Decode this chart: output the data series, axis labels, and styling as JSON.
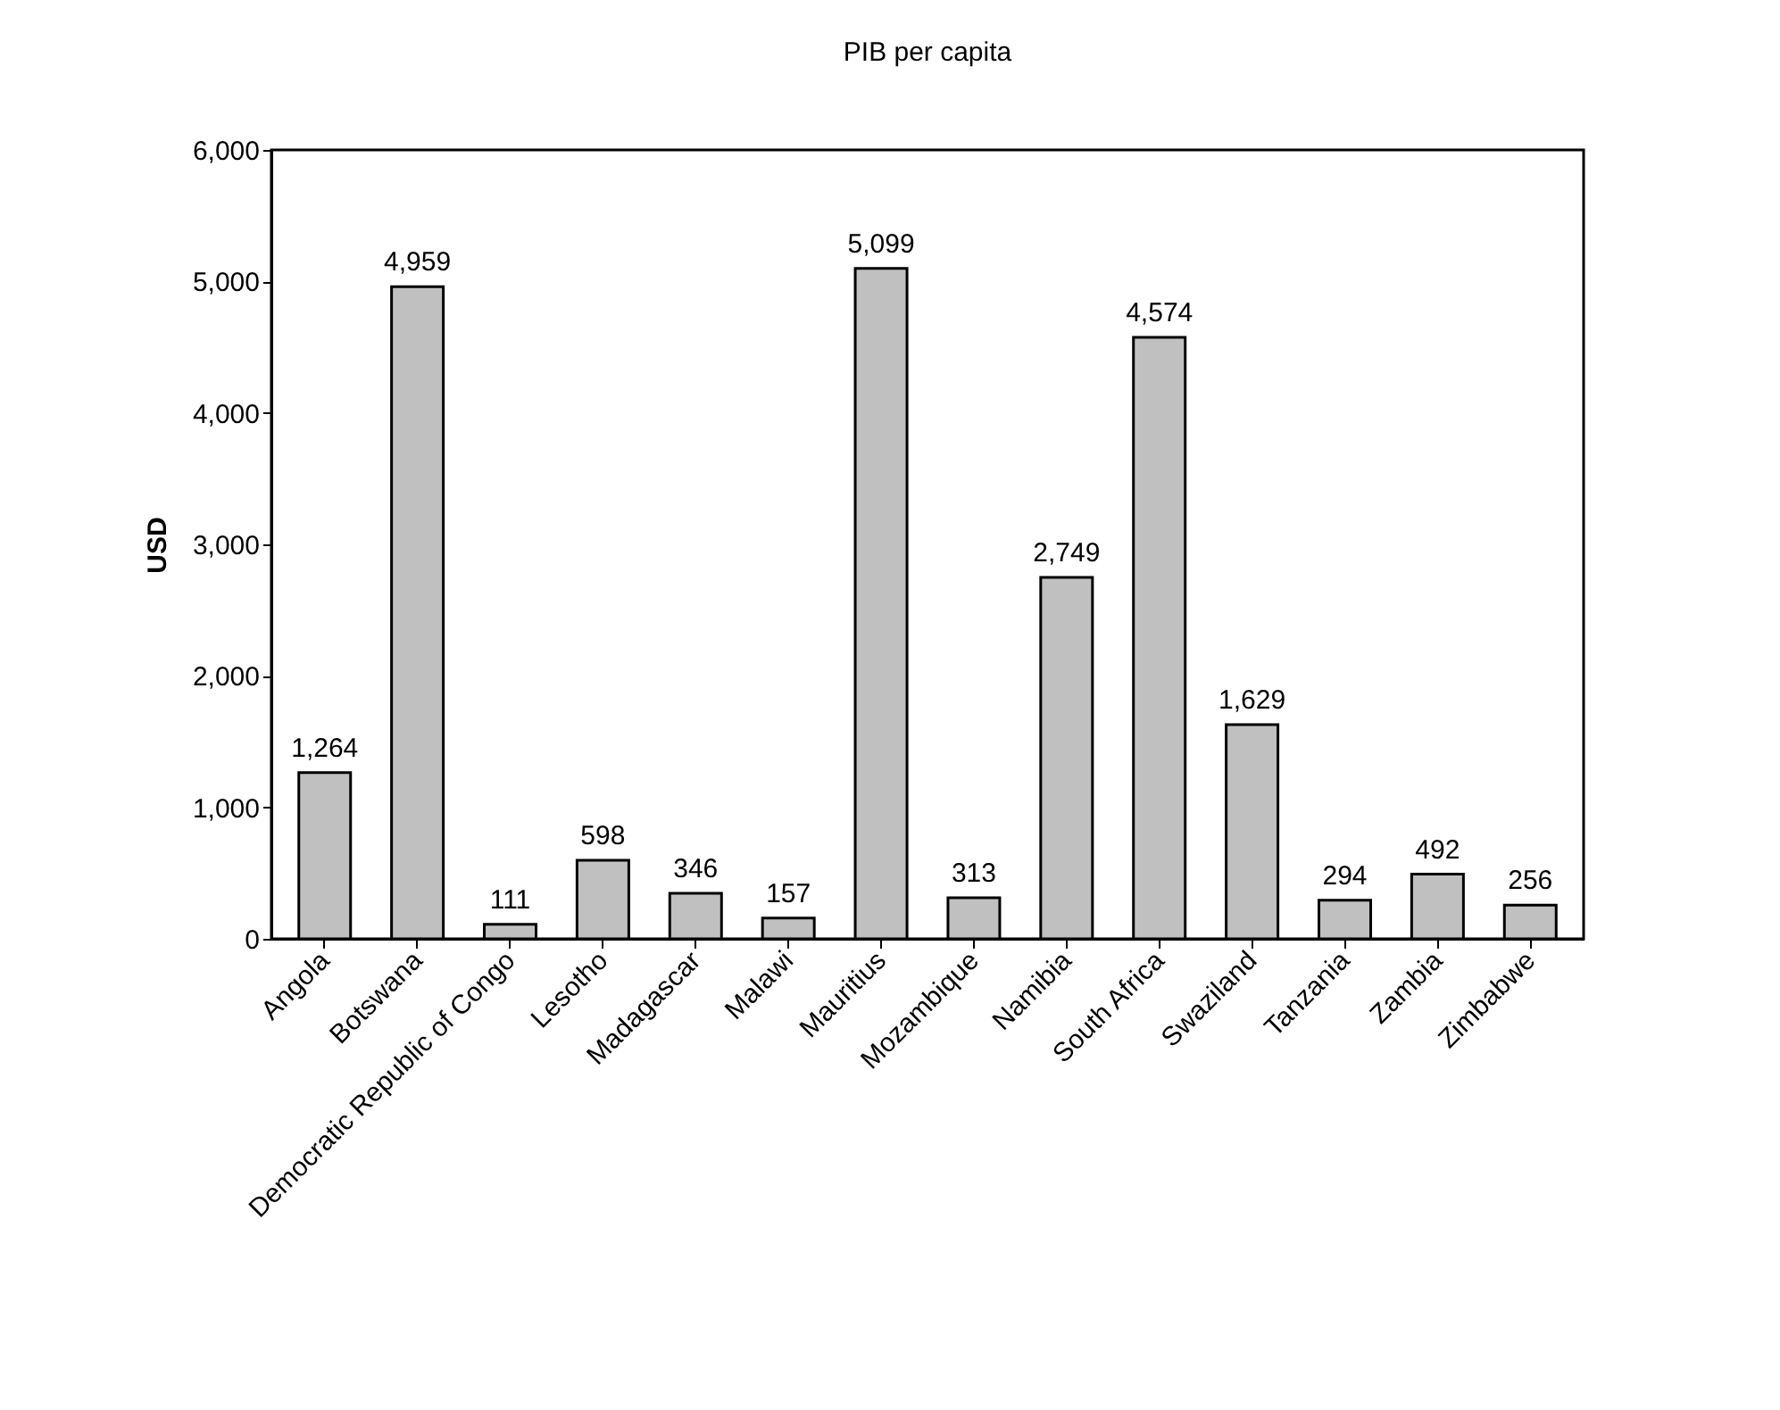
{
  "chart_data": {
    "type": "bar",
    "title": "PIB per capita",
    "ylabel": "USD",
    "categories": [
      "Angola",
      "Botswana",
      "Democratic Republic of Congo",
      "Lesotho",
      "Madagascar",
      "Malawi",
      "Mauritius",
      "Mozambique",
      "Namibia",
      "South Africa",
      "Swaziland",
      "Tanzania",
      "Zambia",
      "Zimbabwe"
    ],
    "values": [
      1264,
      4959,
      111,
      598,
      346,
      157,
      5099,
      313,
      2749,
      4574,
      1629,
      294,
      492,
      256
    ],
    "color": "#c0c0c0",
    "ylim": [
      0,
      6000
    ],
    "yticks": [
      0,
      {
        "value": 1000,
        "label": "1,000"
      },
      {
        "value": 2000,
        "label": "2,000"
      },
      {
        "value": 3000,
        "label": "3,000"
      },
      {
        "value": 4000,
        "label": "4,000"
      },
      {
        "value": 5000,
        "label": "5,000"
      },
      {
        "value": 6000,
        "label": "6,000"
      }
    ],
    "value_labels": [
      "1,264",
      "4,959",
      "111",
      "598",
      "346",
      "157",
      "5,099",
      "313",
      "2,749",
      "4,574",
      "1,629",
      "294",
      "492",
      "256"
    ],
    "grid": false
  }
}
